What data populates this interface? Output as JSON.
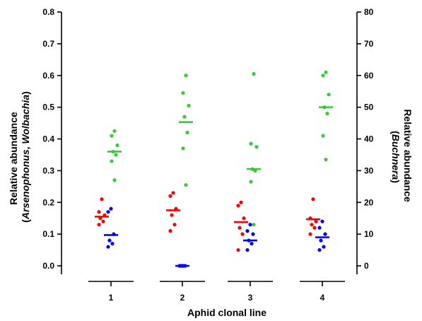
{
  "chart_data": {
    "type": "scatter",
    "categories": [
      "1",
      "2",
      "3",
      "4"
    ],
    "xlabel": "Aphid clonal line",
    "ylabel_left": {
      "line1": "Relative abundance",
      "line2_open": "(",
      "line2_italic1": "Arsenophonus",
      "line2_sep": ", ",
      "line2_italic2": "Wolbachia",
      "line2_close": ")"
    },
    "ylabel_right": {
      "line1": "Relative abundance",
      "line2_open": "(",
      "line2_italic": "Buchnera",
      "line2_close": ")"
    },
    "y_left": {
      "range": [
        0,
        0.8
      ],
      "ticks": [
        0.0,
        0.1,
        0.2,
        0.3,
        0.4,
        0.5,
        0.6,
        0.7,
        0.8
      ],
      "tick_labels": [
        "0.0",
        "0.1",
        "0.2",
        "0.3",
        "0.4",
        "0.5",
        "0.6",
        "0.7",
        "0.8"
      ]
    },
    "y_right": {
      "range": [
        0,
        80
      ],
      "ticks": [
        0,
        10,
        20,
        30,
        40,
        50,
        60,
        70,
        80
      ],
      "tick_labels": [
        "0",
        "10",
        "20",
        "30",
        "40",
        "50",
        "60",
        "70",
        "80"
      ]
    },
    "series": [
      {
        "axis": "left",
        "color": "#ff0000",
        "points": [
          [
            0.21,
            0.17,
            0.16,
            0.15,
            0.14,
            0.13
          ],
          [
            0.23,
            0.22,
            0.18,
            0.16,
            0.13,
            0.11
          ],
          [
            0.2,
            0.19,
            0.15,
            0.12,
            0.1,
            0.05
          ],
          [
            0.21,
            0.15,
            0.14,
            0.13,
            0.12,
            0.1
          ]
        ],
        "median": [
          0.155,
          0.175,
          0.138,
          0.147
        ]
      },
      {
        "axis": "left",
        "color": "#0000ff",
        "points": [
          [
            0.18,
            0.17,
            0.1,
            0.08,
            0.07,
            0.06
          ],
          [
            0.0,
            0.0,
            0.0,
            0.0,
            0.0,
            0.0
          ],
          [
            0.13,
            0.11,
            0.1,
            0.08,
            0.07,
            0.05
          ],
          [
            0.14,
            0.12,
            0.1,
            0.08,
            0.06,
            0.05
          ]
        ],
        "median": [
          0.097,
          0.0,
          0.08,
          0.09
        ]
      },
      {
        "axis": "right",
        "color": "#33cc33",
        "points": [
          [
            42.5,
            41.0,
            38.0,
            36.0,
            35.0,
            33.0,
            27.0
          ],
          [
            60.0,
            54.5,
            50.5,
            47.0,
            42.0,
            37.0,
            25.5
          ],
          [
            60.5,
            38.5,
            37.5,
            30.5,
            30.0,
            26.5,
            13.0
          ],
          [
            61.0,
            60.0,
            54.0,
            50.0,
            48.0,
            41.0,
            33.5
          ]
        ],
        "median": [
          36.0,
          45.3,
          30.5,
          50.0
        ]
      }
    ]
  }
}
